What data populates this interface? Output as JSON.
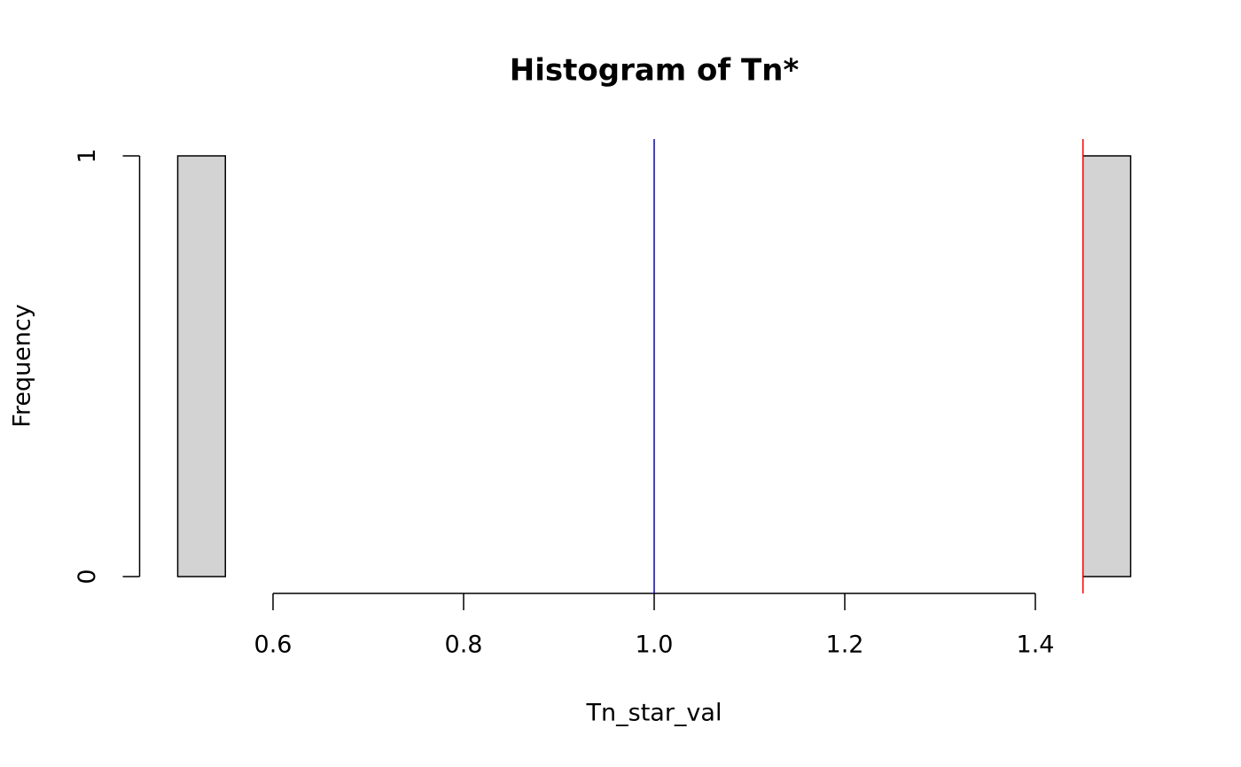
{
  "chart_data": {
    "type": "histogram",
    "title": "Histogram of Tn*",
    "x_label": "Tn_star_val",
    "y_label": "Frequency",
    "bins": [
      0.5,
      0.55,
      0.6,
      0.65,
      0.7,
      0.75,
      0.8,
      0.85,
      0.9,
      0.95,
      1.0,
      1.05,
      1.1,
      1.15,
      1.2,
      1.25,
      1.3,
      1.35,
      1.4,
      1.45,
      1.5
    ],
    "values": [
      1,
      0,
      0,
      0,
      0,
      0,
      0,
      0,
      0,
      0,
      0,
      0,
      0,
      0,
      0,
      0,
      0,
      0,
      0,
      1
    ],
    "color": "#d3d3d3",
    "xlim": [
      0.46,
      1.54
    ],
    "xticks": [
      0.6,
      0.8,
      {
        "value": 1.0,
        "label": "1.0"
      },
      1.2,
      1.4
    ],
    "ylim": [
      -0.04,
      1.04
    ],
    "yticks": [
      0,
      1
    ],
    "vlines": [
      {
        "value": 1.0,
        "color": "#0000cd"
      },
      {
        "value": 1.45,
        "color": "#ff0000"
      }
    ]
  }
}
